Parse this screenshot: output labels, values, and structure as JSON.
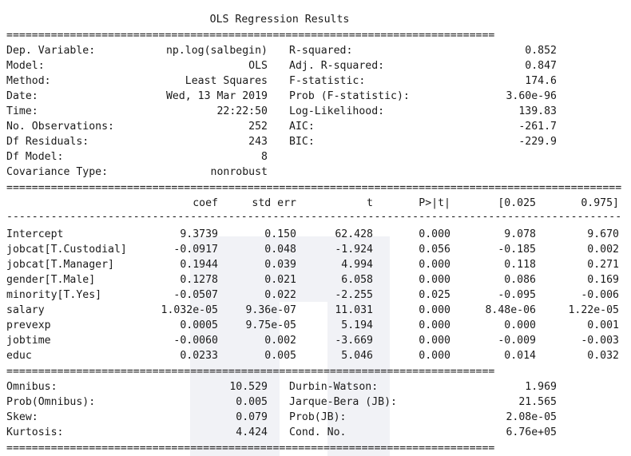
{
  "title": "OLS Regression Results",
  "rule_double_short": "=============================================================================",
  "rule_double_long": "=================================================================================================",
  "rule_dash_long": "-------------------------------------------------------------------------------------------------",
  "header": {
    "left": [
      {
        "label": "Dep. Variable:",
        "value": "np.log(salbegin)"
      },
      {
        "label": "Model:",
        "value": "OLS"
      },
      {
        "label": "Method:",
        "value": "Least Squares"
      },
      {
        "label": "Date:",
        "value": "Wed, 13 Mar 2019"
      },
      {
        "label": "Time:",
        "value": "22:22:50"
      },
      {
        "label": "No. Observations:",
        "value": "252"
      },
      {
        "label": "Df Residuals:",
        "value": "243"
      },
      {
        "label": "Df Model:",
        "value": "8"
      },
      {
        "label": "Covariance Type:",
        "value": "nonrobust"
      }
    ],
    "right": [
      {
        "label": "R-squared:",
        "value": "0.852"
      },
      {
        "label": "Adj. R-squared:",
        "value": "0.847"
      },
      {
        "label": "F-statistic:",
        "value": "174.6"
      },
      {
        "label": "Prob (F-statistic):",
        "value": "3.60e-96"
      },
      {
        "label": "Log-Likelihood:",
        "value": "139.83"
      },
      {
        "label": "AIC:",
        "value": "-261.7"
      },
      {
        "label": "BIC:",
        "value": "-229.9"
      }
    ]
  },
  "coef_table": {
    "columns": [
      "coef",
      "std err",
      "t",
      "P>|t|",
      "[0.025",
      "0.975]"
    ],
    "rows": [
      {
        "name": "Intercept",
        "coef": "9.3739",
        "std_err": "0.150",
        "t": "62.428",
        "p": "0.000",
        "lo": "9.078",
        "hi": "9.670"
      },
      {
        "name": "jobcat[T.Custodial]",
        "coef": "-0.0917",
        "std_err": "0.048",
        "t": "-1.924",
        "p": "0.056",
        "lo": "-0.185",
        "hi": "0.002"
      },
      {
        "name": "jobcat[T.Manager]",
        "coef": "0.1944",
        "std_err": "0.039",
        "t": "4.994",
        "p": "0.000",
        "lo": "0.118",
        "hi": "0.271"
      },
      {
        "name": "gender[T.Male]",
        "coef": "0.1278",
        "std_err": "0.021",
        "t": "6.058",
        "p": "0.000",
        "lo": "0.086",
        "hi": "0.169"
      },
      {
        "name": "minority[T.Yes]",
        "coef": "-0.0507",
        "std_err": "0.022",
        "t": "-2.255",
        "p": "0.025",
        "lo": "-0.095",
        "hi": "-0.006"
      },
      {
        "name": "salary",
        "coef": "1.032e-05",
        "std_err": "9.36e-07",
        "t": "11.031",
        "p": "0.000",
        "lo": "8.48e-06",
        "hi": "1.22e-05"
      },
      {
        "name": "prevexp",
        "coef": "0.0005",
        "std_err": "9.75e-05",
        "t": "5.194",
        "p": "0.000",
        "lo": "0.000",
        "hi": "0.001"
      },
      {
        "name": "jobtime",
        "coef": "-0.0060",
        "std_err": "0.002",
        "t": "-3.669",
        "p": "0.000",
        "lo": "-0.009",
        "hi": "-0.003"
      },
      {
        "name": "educ",
        "coef": "0.0233",
        "std_err": "0.005",
        "t": "5.046",
        "p": "0.000",
        "lo": "0.014",
        "hi": "0.032"
      }
    ]
  },
  "diagnostics": {
    "left": [
      {
        "label": "Omnibus:",
        "value": "10.529"
      },
      {
        "label": "Prob(Omnibus):",
        "value": "0.005"
      },
      {
        "label": "Skew:",
        "value": "0.079"
      },
      {
        "label": "Kurtosis:",
        "value": "4.424"
      }
    ],
    "right": [
      {
        "label": "Durbin-Watson:",
        "value": "1.969"
      },
      {
        "label": "Jarque-Bera (JB):",
        "value": "21.565"
      },
      {
        "label": "Prob(JB):",
        "value": "2.08e-05"
      },
      {
        "label": "Cond. No.",
        "value": "6.76e+05"
      }
    ]
  }
}
